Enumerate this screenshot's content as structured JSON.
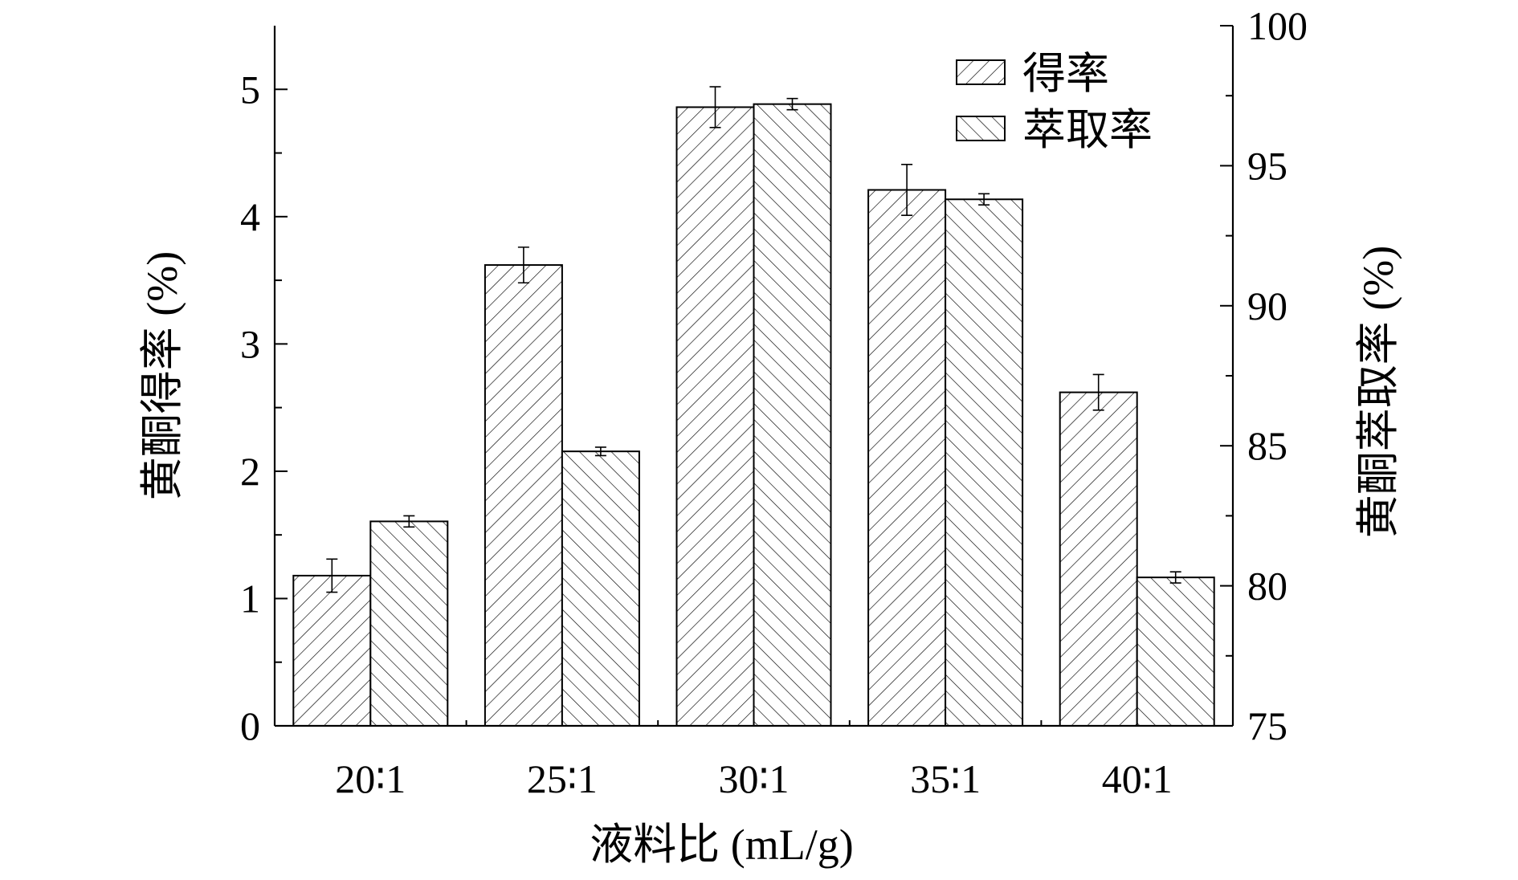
{
  "chart_data": {
    "type": "bar",
    "categories": [
      "20∶1",
      "25∶1",
      "30∶1",
      "35∶1",
      "40∶1"
    ],
    "xlabel": "液料比 (mL/g)",
    "ylabel_left": "黄酮得率 (%)",
    "ylabel_right": "黄酮萃取率 (%)",
    "ylim_left": [
      0,
      5.5
    ],
    "yticks_left": [
      "0",
      "1",
      "2",
      "3",
      "4",
      "5"
    ],
    "ylim_right": [
      75,
      100
    ],
    "yticks_right": [
      "75",
      "80",
      "85",
      "90",
      "95",
      "100"
    ],
    "legend_position": "top-right",
    "grid": false,
    "series": [
      {
        "name": "得率",
        "axis": "left",
        "pattern": "forward-diagonal-hatch",
        "values": [
          1.18,
          3.62,
          4.86,
          4.21,
          2.62
        ],
        "errors": [
          0.13,
          0.14,
          0.16,
          0.2,
          0.14
        ]
      },
      {
        "name": "萃取率",
        "axis": "right",
        "pattern": "backward-diagonal-hatch",
        "values": [
          82.3,
          84.8,
          97.2,
          93.8,
          80.3
        ],
        "errors": [
          0.2,
          0.15,
          0.2,
          0.2,
          0.2
        ]
      }
    ]
  }
}
